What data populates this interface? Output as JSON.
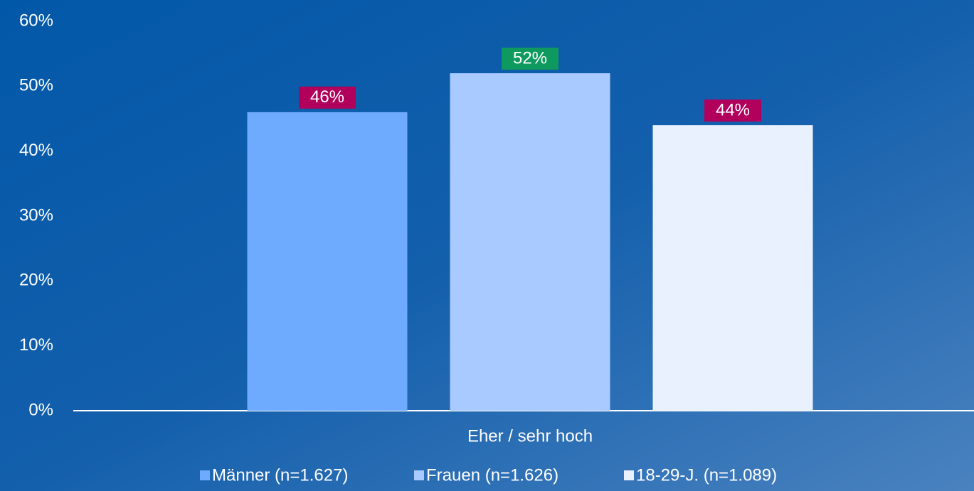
{
  "chart_data": {
    "type": "bar",
    "categories": [
      "Eher / sehr hoch"
    ],
    "series": [
      {
        "name": "Männer (n=1.627)",
        "color": "#6eaafe",
        "label_color": "#b0005c",
        "values": [
          46
        ],
        "value_labels": [
          "46%"
        ]
      },
      {
        "name": "Frauen (n=1.626)",
        "color": "#a9caff",
        "label_color": "#0e9a5e",
        "values": [
          52
        ],
        "value_labels": [
          "52%"
        ]
      },
      {
        "name": "18-29-J. (n=1.089)",
        "color": "#eaf1fe",
        "label_color": "#b0005c",
        "values": [
          44
        ],
        "value_labels": [
          "44%"
        ]
      }
    ],
    "ylim": [
      0,
      60
    ],
    "yticks": [
      {
        "value": 0,
        "label": "0%"
      },
      {
        "value": 10,
        "label": "10%"
      },
      {
        "value": 20,
        "label": "20%"
      },
      {
        "value": 30,
        "label": "30%"
      },
      {
        "value": 40,
        "label": "40%"
      },
      {
        "value": 50,
        "label": "50%"
      },
      {
        "value": 60,
        "label": "60%"
      }
    ],
    "grid": false
  }
}
